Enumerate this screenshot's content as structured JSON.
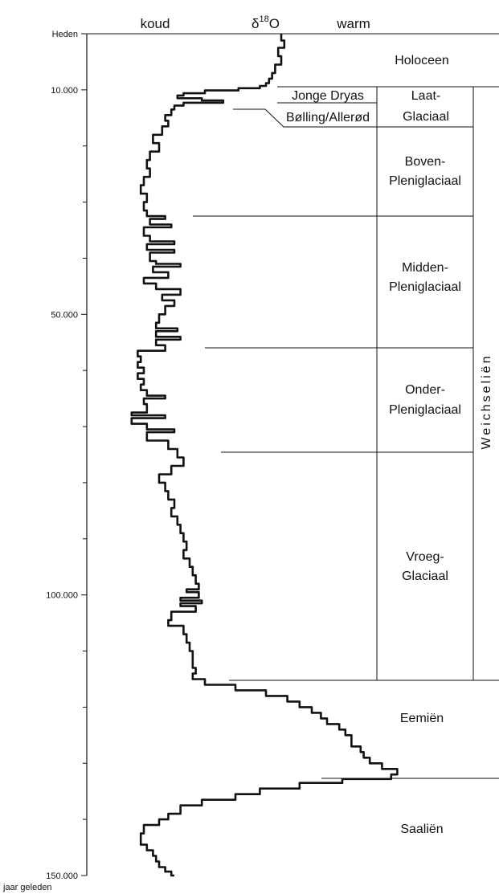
{
  "chart_data": {
    "type": "line",
    "title": "",
    "header": {
      "cold_label": "koud",
      "isotope_delta": "δ",
      "isotope_mass": "18",
      "isotope_element": "O",
      "warm_label": "warm"
    },
    "y_axis": {
      "range": [
        0,
        150000
      ],
      "direction": "down",
      "labeled_ticks": [
        {
          "value": 0,
          "label": "Heden"
        },
        {
          "value": 10000,
          "label": "10.000"
        },
        {
          "value": 50000,
          "label": "50.000"
        },
        {
          "value": 100000,
          "label": "100.000"
        },
        {
          "value": 150000,
          "label": "150.000"
        }
      ],
      "minor_ticks": [
        20000,
        30000,
        40000,
        60000,
        70000,
        80000,
        90000,
        110000,
        120000,
        130000,
        140000
      ],
      "unit_label": "jaar geleden"
    },
    "x_axis": {
      "range": [
        0,
        1
      ],
      "direction": "cold-to-warm",
      "ticks": "none"
    },
    "series": [
      {
        "points": [
          [
            0,
            0.5
          ],
          [
            1200,
            0.51
          ],
          [
            2500,
            0.49
          ],
          [
            4000,
            0.5
          ],
          [
            5500,
            0.48
          ],
          [
            7000,
            0.47
          ],
          [
            8000,
            0.46
          ],
          [
            8800,
            0.45
          ],
          [
            9300,
            0.43
          ],
          [
            9700,
            0.36
          ],
          [
            10100,
            0.25
          ],
          [
            10600,
            0.18
          ],
          [
            11000,
            0.16
          ],
          [
            11500,
            0.24
          ],
          [
            11900,
            0.31
          ],
          [
            12300,
            0.18
          ],
          [
            12800,
            0.15
          ],
          [
            13500,
            0.14
          ],
          [
            14500,
            0.12
          ],
          [
            15500,
            0.13
          ],
          [
            16500,
            0.11
          ],
          [
            18000,
            0.08
          ],
          [
            19500,
            0.1
          ],
          [
            21000,
            0.07
          ],
          [
            22500,
            0.06
          ],
          [
            24000,
            0.07
          ],
          [
            25500,
            0.05
          ],
          [
            27000,
            0.04
          ],
          [
            28500,
            0.06
          ],
          [
            30000,
            0.05
          ],
          [
            31500,
            0.06
          ],
          [
            32500,
            0.12
          ],
          [
            33000,
            0.07
          ],
          [
            34000,
            0.14
          ],
          [
            34500,
            0.05
          ],
          [
            36000,
            0.07
          ],
          [
            37000,
            0.15
          ],
          [
            37500,
            0.06
          ],
          [
            38500,
            0.15
          ],
          [
            39000,
            0.07
          ],
          [
            40500,
            0.09
          ],
          [
            41000,
            0.17
          ],
          [
            41500,
            0.08
          ],
          [
            42500,
            0.13
          ],
          [
            43500,
            0.05
          ],
          [
            44500,
            0.09
          ],
          [
            45500,
            0.17
          ],
          [
            46500,
            0.11
          ],
          [
            47500,
            0.15
          ],
          [
            48500,
            0.12
          ],
          [
            50000,
            0.1
          ],
          [
            51500,
            0.09
          ],
          [
            52500,
            0.16
          ],
          [
            53000,
            0.09
          ],
          [
            54000,
            0.17
          ],
          [
            54500,
            0.09
          ],
          [
            55500,
            0.12
          ],
          [
            56500,
            0.03
          ],
          [
            57500,
            0.04
          ],
          [
            58500,
            0.03
          ],
          [
            59500,
            0.05
          ],
          [
            60500,
            0.03
          ],
          [
            61500,
            0.05
          ],
          [
            62500,
            0.04
          ],
          [
            63500,
            0.06
          ],
          [
            64500,
            0.12
          ],
          [
            65000,
            0.05
          ],
          [
            66000,
            0.06
          ],
          [
            67500,
            0.01
          ],
          [
            68000,
            0.12
          ],
          [
            68500,
            0.01
          ],
          [
            69500,
            0.06
          ],
          [
            70500,
            0.15
          ],
          [
            71000,
            0.06
          ],
          [
            72500,
            0.13
          ],
          [
            74000,
            0.16
          ],
          [
            75500,
            0.18
          ],
          [
            77000,
            0.14
          ],
          [
            78500,
            0.1
          ],
          [
            80000,
            0.12
          ],
          [
            81500,
            0.13
          ],
          [
            83000,
            0.15
          ],
          [
            84500,
            0.14
          ],
          [
            86000,
            0.16
          ],
          [
            87500,
            0.17
          ],
          [
            89000,
            0.18
          ],
          [
            90500,
            0.19
          ],
          [
            92000,
            0.18
          ],
          [
            93500,
            0.2
          ],
          [
            95000,
            0.21
          ],
          [
            96500,
            0.22
          ],
          [
            98000,
            0.23
          ],
          [
            99000,
            0.19
          ],
          [
            99500,
            0.23
          ],
          [
            100500,
            0.17
          ],
          [
            101000,
            0.24
          ],
          [
            101500,
            0.17
          ],
          [
            102000,
            0.22
          ],
          [
            103000,
            0.14
          ],
          [
            104500,
            0.13
          ],
          [
            105500,
            0.18
          ],
          [
            107000,
            0.19
          ],
          [
            108500,
            0.2
          ],
          [
            110000,
            0.21
          ],
          [
            111500,
            0.21
          ],
          [
            113000,
            0.22
          ],
          [
            114000,
            0.21
          ],
          [
            115000,
            0.25
          ],
          [
            116000,
            0.35
          ],
          [
            117000,
            0.45
          ],
          [
            118000,
            0.52
          ],
          [
            119000,
            0.56
          ],
          [
            120000,
            0.6
          ],
          [
            121000,
            0.63
          ],
          [
            122000,
            0.65
          ],
          [
            123000,
            0.69
          ],
          [
            124000,
            0.71
          ],
          [
            125000,
            0.73
          ],
          [
            126000,
            0.73
          ],
          [
            127000,
            0.76
          ],
          [
            128000,
            0.77
          ],
          [
            129000,
            0.79
          ],
          [
            130000,
            0.83
          ],
          [
            131000,
            0.88
          ],
          [
            132000,
            0.86
          ],
          [
            132800,
            0.7
          ],
          [
            133500,
            0.56
          ],
          [
            134500,
            0.43
          ],
          [
            135500,
            0.35
          ],
          [
            136500,
            0.24
          ],
          [
            137500,
            0.17
          ],
          [
            139000,
            0.13
          ],
          [
            140000,
            0.1
          ],
          [
            141000,
            0.05
          ],
          [
            142500,
            0.04
          ],
          [
            143500,
            0.04
          ],
          [
            144500,
            0.06
          ],
          [
            145500,
            0.08
          ],
          [
            146500,
            0.09
          ],
          [
            147500,
            0.1
          ],
          [
            148500,
            0.12
          ],
          [
            149300,
            0.14
          ],
          [
            150000,
            0.15
          ]
        ]
      }
    ],
    "periods": [
      {
        "name": "Holoceen",
        "from": 0,
        "to": 10000
      },
      {
        "name": "Laat-Glaciaal",
        "from": 10000,
        "to": 22000
      },
      {
        "name": "Boven-Pleniglaciaal",
        "from": 22000,
        "to": 33000
      },
      {
        "name": "Midden-Pleniglaciaal",
        "from": 33000,
        "to": 56500
      },
      {
        "name": "Onder-Pleniglaciaal",
        "from": 56500,
        "to": 75000
      },
      {
        "name": "Vroeg-Glaciaal",
        "from": 75000,
        "to": 115000
      },
      {
        "name": "Eemiën",
        "from": 115000,
        "to": 132000
      },
      {
        "name": "Saaliën",
        "from": 132000,
        "to": 150000
      }
    ],
    "sub_periods": [
      {
        "name": "Jonge Dryas",
        "from": 10000,
        "to": 12000
      },
      {
        "name": "Bølling/Allerød",
        "from": 12000,
        "to": 14500
      }
    ],
    "stage": {
      "name": "Weichseliën",
      "from": 10000,
      "to": 115000
    }
  },
  "labels": {
    "heden": "Heden",
    "jaar_geleden": "jaar geleden",
    "holoceen": "Holoceen",
    "laat_line1": "Laat-",
    "laat_line2": "Glaciaal",
    "jonge_dryas": "Jonge Dryas",
    "bolling_allerod": "Bølling/Allerød",
    "boven_line1": "Boven-",
    "boven_line2": "Pleniglaciaal",
    "midden_line1": "Midden-",
    "midden_line2": "Pleniglaciaal",
    "onder_line1": "Onder-",
    "onder_line2": "Pleniglaciaal",
    "vroeg_line1": "Vroeg-",
    "vroeg_line2": "Glaciaal",
    "eemien": "Eemiën",
    "saalien": "Saaliën",
    "weichselien": "Weichseliën"
  }
}
